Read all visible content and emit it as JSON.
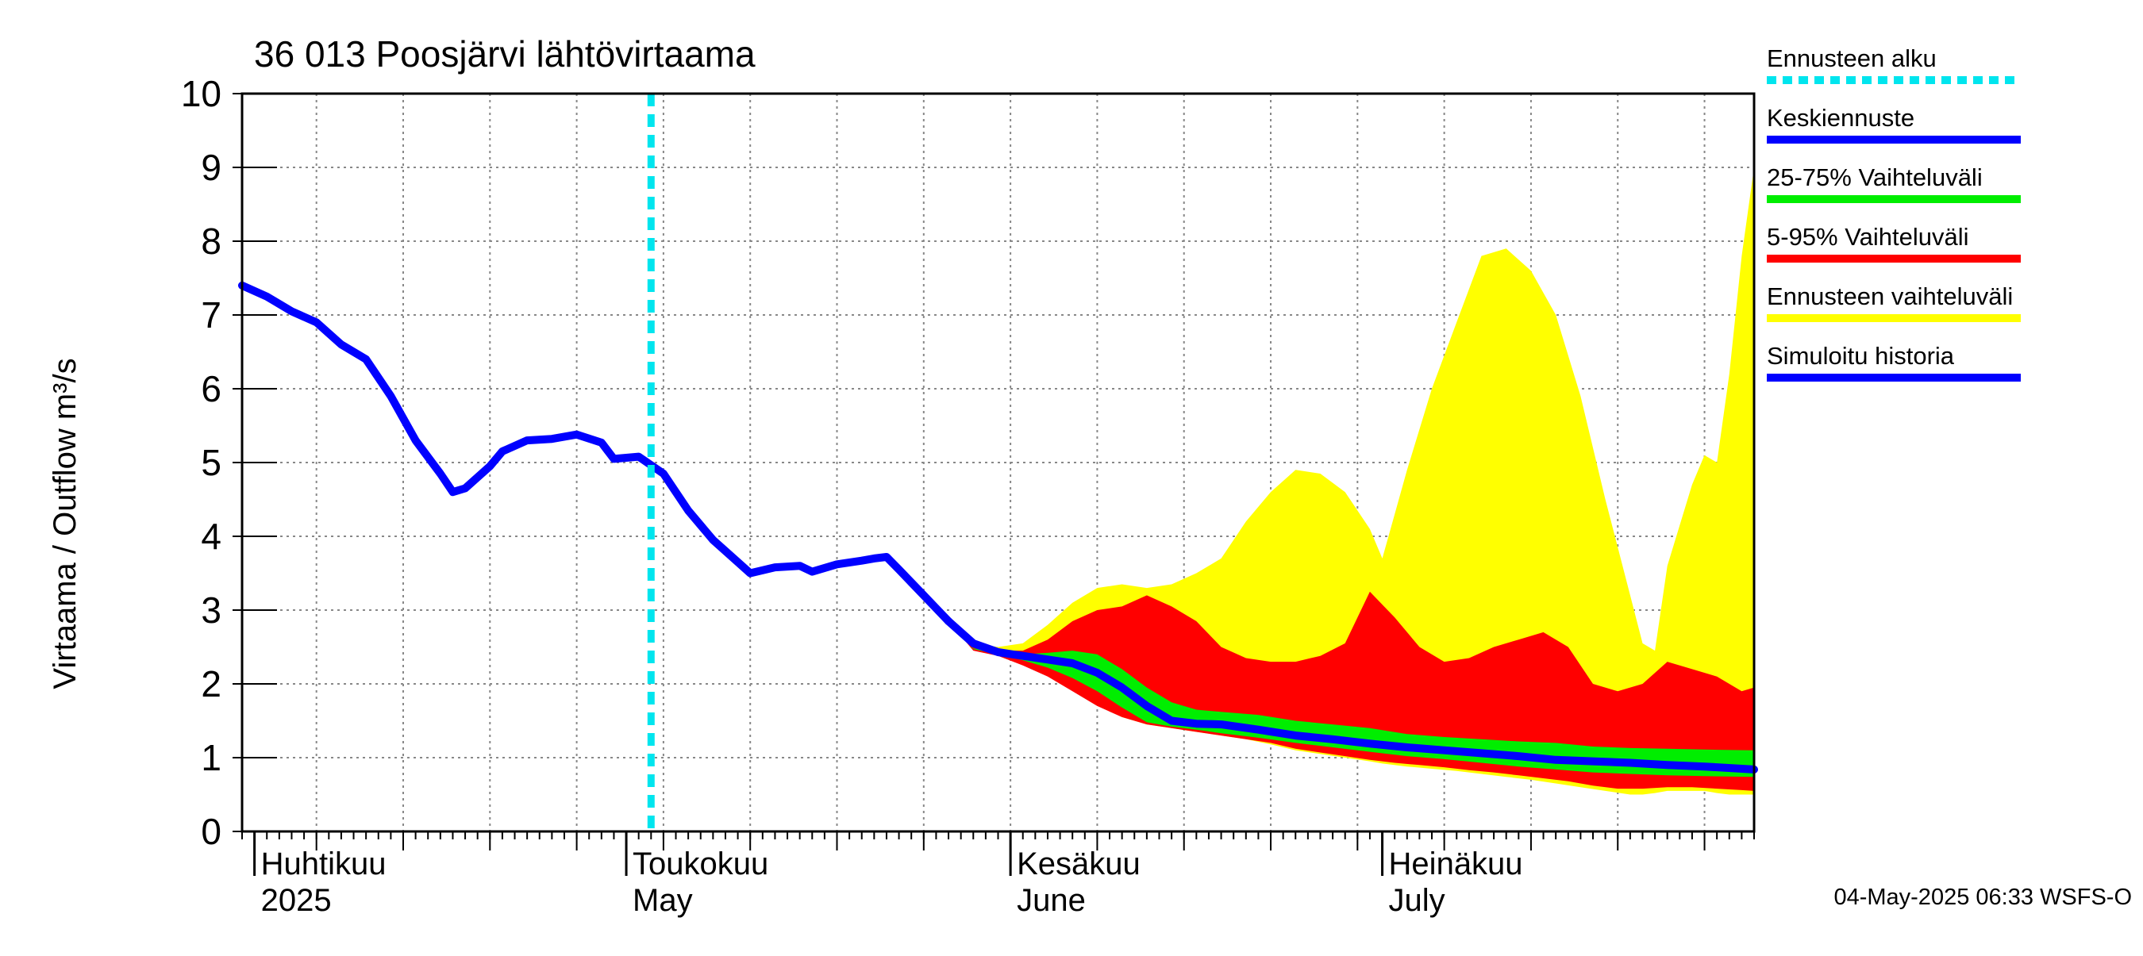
{
  "chart_data": {
    "type": "area",
    "title": "36 013 Poosjärvi lähtövirtaama",
    "ylabel": "Virtaama / Outflow    m³/s",
    "xlabel": "",
    "ylim": [
      0,
      10
    ],
    "yticks": [
      0,
      1,
      2,
      3,
      4,
      5,
      6,
      7,
      8,
      9,
      10
    ],
    "x_range": [
      "2025-03-31",
      "2025-07-31"
    ],
    "grid": true,
    "legend_position": "right",
    "month_labels": [
      {
        "date": "2025-04-01",
        "fi": "Huhtikuu",
        "en": "2025"
      },
      {
        "date": "2025-05-01",
        "fi": "Toukokuu",
        "en": "May"
      },
      {
        "date": "2025-06-01",
        "fi": "Kesäkuu",
        "en": "June"
      },
      {
        "date": "2025-07-01",
        "fi": "Heinäkuu",
        "en": "July"
      }
    ],
    "forecast_start": "2025-05-03",
    "legend": [
      {
        "label": "Ennusteen alku",
        "color": "#00e5ee",
        "style": "dashed"
      },
      {
        "label": "Keskiennuste",
        "color": "#0000ff",
        "style": "solid"
      },
      {
        "label": "25-75% Vaihteluväli",
        "color": "#00ee00",
        "style": "solid"
      },
      {
        "label": "5-95% Vaihteluväli",
        "color": "#ff0000",
        "style": "solid"
      },
      {
        "label": "Ennusteen vaihteluväli",
        "color": "#ffff00",
        "style": "solid"
      },
      {
        "label": "Simuloitu historia",
        "color": "#0000ff",
        "style": "solid"
      }
    ],
    "series": [
      {
        "name": "Simuloitu historia",
        "color": "#0000ff",
        "points": [
          [
            "2025-03-31",
            7.4
          ],
          [
            "2025-04-02",
            7.25
          ],
          [
            "2025-04-04",
            7.05
          ],
          [
            "2025-04-06",
            6.9
          ],
          [
            "2025-04-08",
            6.6
          ],
          [
            "2025-04-10",
            6.4
          ],
          [
            "2025-04-12",
            5.9
          ],
          [
            "2025-04-14",
            5.3
          ],
          [
            "2025-04-16",
            4.85
          ],
          [
            "2025-04-17",
            4.6
          ],
          [
            "2025-04-18",
            4.65
          ],
          [
            "2025-04-20",
            4.95
          ],
          [
            "2025-04-21",
            5.15
          ],
          [
            "2025-04-23",
            5.3
          ],
          [
            "2025-04-25",
            5.32
          ],
          [
            "2025-04-27",
            5.38
          ],
          [
            "2025-04-29",
            5.27
          ],
          [
            "2025-04-30",
            5.05
          ],
          [
            "2025-05-02",
            5.08
          ],
          [
            "2025-05-04",
            4.85
          ],
          [
            "2025-05-06",
            4.35
          ],
          [
            "2025-05-08",
            3.95
          ],
          [
            "2025-05-10",
            3.65
          ],
          [
            "2025-05-11",
            3.5
          ],
          [
            "2025-05-13",
            3.58
          ],
          [
            "2025-05-15",
            3.6
          ],
          [
            "2025-05-16",
            3.52
          ],
          [
            "2025-05-18",
            3.62
          ],
          [
            "2025-05-20",
            3.67
          ],
          [
            "2025-05-21",
            3.7
          ],
          [
            "2025-05-22",
            3.72
          ],
          [
            "2025-05-23",
            3.55
          ],
          [
            "2025-05-25",
            3.2
          ],
          [
            "2025-05-27",
            2.85
          ]
        ]
      },
      {
        "name": "Keskiennuste",
        "color": "#0000ff",
        "points": [
          [
            "2025-05-27",
            2.85
          ],
          [
            "2025-05-29",
            2.55
          ],
          [
            "2025-05-31",
            2.43
          ],
          [
            "2025-06-02",
            2.38
          ],
          [
            "2025-06-04",
            2.33
          ],
          [
            "2025-06-06",
            2.28
          ],
          [
            "2025-06-08",
            2.15
          ],
          [
            "2025-06-10",
            1.95
          ],
          [
            "2025-06-12",
            1.7
          ],
          [
            "2025-06-14",
            1.5
          ],
          [
            "2025-06-16",
            1.46
          ],
          [
            "2025-06-18",
            1.45
          ],
          [
            "2025-06-21",
            1.38
          ],
          [
            "2025-06-24",
            1.3
          ],
          [
            "2025-06-27",
            1.25
          ],
          [
            "2025-06-30",
            1.19
          ],
          [
            "2025-07-03",
            1.14
          ],
          [
            "2025-07-06",
            1.1
          ],
          [
            "2025-07-09",
            1.06
          ],
          [
            "2025-07-12",
            1.02
          ],
          [
            "2025-07-15",
            0.97
          ],
          [
            "2025-07-18",
            0.95
          ],
          [
            "2025-07-21",
            0.93
          ],
          [
            "2025-07-24",
            0.9
          ],
          [
            "2025-07-27",
            0.88
          ],
          [
            "2025-07-31",
            0.84
          ]
        ]
      }
    ],
    "bands": [
      {
        "name": "Ennusteen vaihteluväli",
        "color": "#ffff00",
        "points": [
          [
            "2025-05-27",
            2.85,
            2.85
          ],
          [
            "2025-05-29",
            2.55,
            2.5
          ],
          [
            "2025-05-31",
            2.5,
            2.42
          ],
          [
            "2025-06-02",
            2.55,
            2.3
          ],
          [
            "2025-06-04",
            2.8,
            2.15
          ],
          [
            "2025-06-06",
            3.1,
            1.95
          ],
          [
            "2025-06-08",
            3.3,
            1.75
          ],
          [
            "2025-06-10",
            3.35,
            1.55
          ],
          [
            "2025-06-12",
            3.3,
            1.45
          ],
          [
            "2025-06-14",
            3.35,
            1.4
          ],
          [
            "2025-06-16",
            3.5,
            1.35
          ],
          [
            "2025-06-18",
            3.7,
            1.3
          ],
          [
            "2025-06-20",
            4.2,
            1.25
          ],
          [
            "2025-06-22",
            4.6,
            1.18
          ],
          [
            "2025-06-24",
            4.9,
            1.1
          ],
          [
            "2025-06-26",
            4.85,
            1.05
          ],
          [
            "2025-06-28",
            4.6,
            1.0
          ],
          [
            "2025-06-30",
            4.1,
            0.95
          ],
          [
            "2025-07-01",
            3.7,
            0.92
          ],
          [
            "2025-07-03",
            4.9,
            0.88
          ],
          [
            "2025-07-05",
            6.0,
            0.85
          ],
          [
            "2025-07-07",
            6.9,
            0.82
          ],
          [
            "2025-07-09",
            7.8,
            0.78
          ],
          [
            "2025-07-11",
            7.9,
            0.74
          ],
          [
            "2025-07-13",
            7.6,
            0.7
          ],
          [
            "2025-07-15",
            7.0,
            0.65
          ],
          [
            "2025-07-17",
            5.9,
            0.6
          ],
          [
            "2025-07-19",
            4.5,
            0.55
          ],
          [
            "2025-07-21",
            3.2,
            0.5
          ],
          [
            "2025-07-22",
            2.55,
            0.5
          ],
          [
            "2025-07-23",
            2.45,
            0.52
          ],
          [
            "2025-07-24",
            3.6,
            0.55
          ],
          [
            "2025-07-26",
            4.7,
            0.55
          ],
          [
            "2025-07-27",
            5.1,
            0.55
          ],
          [
            "2025-07-28",
            5.0,
            0.52
          ],
          [
            "2025-07-29",
            6.2,
            0.5
          ],
          [
            "2025-07-30",
            7.8,
            0.5
          ],
          [
            "2025-07-31",
            9.0,
            0.5
          ]
        ]
      },
      {
        "name": "5-95% Vaihteluväli",
        "color": "#ff0000",
        "points": [
          [
            "2025-05-27",
            2.85,
            2.85
          ],
          [
            "2025-05-29",
            2.5,
            2.45
          ],
          [
            "2025-05-31",
            2.45,
            2.38
          ],
          [
            "2025-06-02",
            2.45,
            2.25
          ],
          [
            "2025-06-04",
            2.6,
            2.1
          ],
          [
            "2025-06-06",
            2.85,
            1.9
          ],
          [
            "2025-06-08",
            3.0,
            1.7
          ],
          [
            "2025-06-10",
            3.05,
            1.55
          ],
          [
            "2025-06-12",
            3.2,
            1.45
          ],
          [
            "2025-06-14",
            3.05,
            1.4
          ],
          [
            "2025-06-16",
            2.85,
            1.35
          ],
          [
            "2025-06-18",
            2.5,
            1.3
          ],
          [
            "2025-06-20",
            2.35,
            1.25
          ],
          [
            "2025-06-22",
            2.3,
            1.2
          ],
          [
            "2025-06-24",
            2.3,
            1.12
          ],
          [
            "2025-06-26",
            2.38,
            1.07
          ],
          [
            "2025-06-28",
            2.55,
            1.02
          ],
          [
            "2025-06-30",
            3.25,
            0.97
          ],
          [
            "2025-07-02",
            2.9,
            0.93
          ],
          [
            "2025-07-04",
            2.5,
            0.9
          ],
          [
            "2025-07-06",
            2.3,
            0.87
          ],
          [
            "2025-07-08",
            2.35,
            0.83
          ],
          [
            "2025-07-10",
            2.5,
            0.8
          ],
          [
            "2025-07-12",
            2.6,
            0.76
          ],
          [
            "2025-07-14",
            2.7,
            0.72
          ],
          [
            "2025-07-16",
            2.5,
            0.68
          ],
          [
            "2025-07-18",
            2.0,
            0.62
          ],
          [
            "2025-07-20",
            1.9,
            0.58
          ],
          [
            "2025-07-22",
            2.0,
            0.58
          ],
          [
            "2025-07-24",
            2.3,
            0.6
          ],
          [
            "2025-07-26",
            2.2,
            0.6
          ],
          [
            "2025-07-28",
            2.1,
            0.58
          ],
          [
            "2025-07-30",
            1.9,
            0.56
          ],
          [
            "2025-07-31",
            1.95,
            0.55
          ]
        ]
      },
      {
        "name": "25-75% Vaihteluväli",
        "color": "#00ee00",
        "points": [
          [
            "2025-05-27",
            2.85,
            2.85
          ],
          [
            "2025-05-29",
            2.48,
            2.47
          ],
          [
            "2025-05-31",
            2.44,
            2.4
          ],
          [
            "2025-06-02",
            2.4,
            2.32
          ],
          [
            "2025-06-04",
            2.42,
            2.22
          ],
          [
            "2025-06-06",
            2.45,
            2.08
          ],
          [
            "2025-06-08",
            2.4,
            1.9
          ],
          [
            "2025-06-10",
            2.2,
            1.68
          ],
          [
            "2025-06-12",
            1.95,
            1.48
          ],
          [
            "2025-06-14",
            1.75,
            1.42
          ],
          [
            "2025-06-16",
            1.65,
            1.38
          ],
          [
            "2025-06-18",
            1.62,
            1.33
          ],
          [
            "2025-06-21",
            1.58,
            1.27
          ],
          [
            "2025-06-24",
            1.5,
            1.2
          ],
          [
            "2025-06-27",
            1.45,
            1.14
          ],
          [
            "2025-06-30",
            1.4,
            1.08
          ],
          [
            "2025-07-03",
            1.32,
            1.02
          ],
          [
            "2025-07-06",
            1.28,
            0.98
          ],
          [
            "2025-07-09",
            1.25,
            0.93
          ],
          [
            "2025-07-12",
            1.22,
            0.88
          ],
          [
            "2025-07-15",
            1.2,
            0.84
          ],
          [
            "2025-07-18",
            1.15,
            0.8
          ],
          [
            "2025-07-21",
            1.13,
            0.78
          ],
          [
            "2025-07-24",
            1.12,
            0.76
          ],
          [
            "2025-07-27",
            1.11,
            0.75
          ],
          [
            "2025-07-31",
            1.1,
            0.74
          ]
        ]
      }
    ]
  },
  "footer": {
    "timestamp": "04-May-2025 06:33 WSFS-O"
  }
}
